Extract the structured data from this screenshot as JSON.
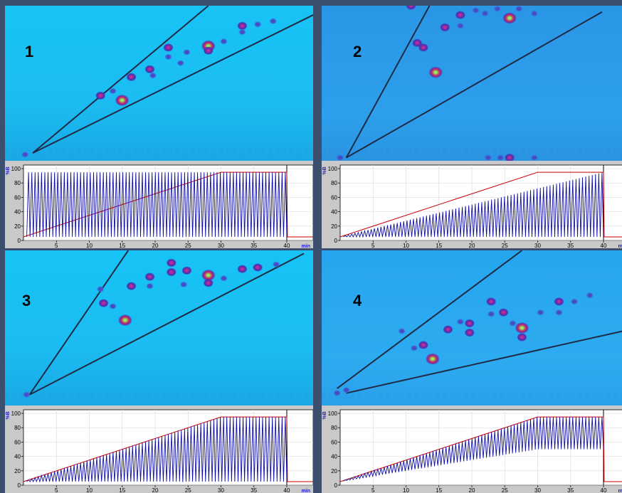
{
  "panels": [
    {
      "label": "1"
    },
    {
      "label": "2"
    },
    {
      "label": "3"
    },
    {
      "label": "4"
    }
  ],
  "chart_data": [
    {
      "type": "line",
      "panel": "1",
      "y_unit": "%B",
      "x_unit": "min",
      "xlim": [
        0,
        44
      ],
      "ylim": [
        0,
        105
      ],
      "x_ticks": [
        5,
        10,
        15,
        20,
        25,
        30,
        35,
        40
      ],
      "y_ticks": [
        0,
        20,
        40,
        60,
        80,
        100
      ],
      "series": [
        {
          "color": "#cc0000",
          "values": [
            [
              0,
              5
            ],
            [
              30,
              95
            ],
            [
              40,
              95
            ],
            [
              40.1,
              5
            ],
            [
              44,
              5
            ]
          ]
        },
        {
          "color": "#1010a0",
          "pattern": "sawtooth",
          "cycles": 80,
          "x_range": [
            0.5,
            40
          ],
          "lower": [
            [
              0,
              5
            ],
            [
              40,
              5
            ]
          ],
          "upper": [
            [
              0,
              95
            ],
            [
              40,
              95
            ]
          ]
        }
      ]
    },
    {
      "type": "line",
      "panel": "2",
      "y_unit": "%B",
      "x_unit": "min",
      "xlim": [
        0,
        44
      ],
      "ylim": [
        0,
        105
      ],
      "x_ticks": [
        5,
        10,
        15,
        20,
        25,
        30,
        35,
        40
      ],
      "y_ticks": [
        0,
        20,
        40,
        60,
        80,
        100
      ],
      "series": [
        {
          "color": "#cc0000",
          "values": [
            [
              0,
              5
            ],
            [
              30,
              95
            ],
            [
              40,
              95
            ],
            [
              40.1,
              5
            ],
            [
              44,
              5
            ]
          ]
        },
        {
          "color": "#1010a0",
          "pattern": "sawtooth",
          "cycles": 80,
          "x_range": [
            0.5,
            40
          ],
          "lower": [
            [
              0,
              5
            ],
            [
              40,
              5
            ]
          ],
          "upper": [
            [
              0,
              5
            ],
            [
              40,
              95
            ]
          ]
        }
      ]
    },
    {
      "type": "line",
      "panel": "3",
      "y_unit": "%B",
      "x_unit": "min",
      "xlim": [
        0,
        44
      ],
      "ylim": [
        0,
        105
      ],
      "x_ticks": [
        5,
        10,
        15,
        20,
        25,
        30,
        35,
        40
      ],
      "y_ticks": [
        0,
        20,
        40,
        60,
        80,
        100
      ],
      "series": [
        {
          "color": "#cc0000",
          "values": [
            [
              0,
              5
            ],
            [
              30,
              95
            ],
            [
              40,
              95
            ],
            [
              40.1,
              5
            ],
            [
              44,
              5
            ]
          ]
        },
        {
          "color": "#1010a0",
          "pattern": "sawtooth",
          "cycles": 80,
          "x_range": [
            0.5,
            40
          ],
          "lower": [
            [
              0,
              5
            ],
            [
              40,
              5
            ]
          ],
          "upper": [
            [
              0,
              5
            ],
            [
              30,
              95
            ],
            [
              40,
              95
            ]
          ]
        }
      ]
    },
    {
      "type": "line",
      "panel": "4",
      "y_unit": "%B",
      "x_unit": "min",
      "xlim": [
        0,
        44
      ],
      "ylim": [
        0,
        105
      ],
      "x_ticks": [
        5,
        10,
        15,
        20,
        25,
        30,
        35,
        40
      ],
      "y_ticks": [
        0,
        20,
        40,
        60,
        80,
        100
      ],
      "series": [
        {
          "color": "#cc0000",
          "values": [
            [
              0,
              5
            ],
            [
              30,
              95
            ],
            [
              40,
              95
            ],
            [
              40.1,
              5
            ],
            [
              44,
              5
            ]
          ]
        },
        {
          "color": "#1010a0",
          "pattern": "sawtooth",
          "cycles": 80,
          "x_range": [
            0.5,
            40
          ],
          "lower": [
            [
              0,
              5
            ],
            [
              30,
              50
            ],
            [
              40,
              50
            ]
          ],
          "upper": [
            [
              0,
              5
            ],
            [
              30,
              95
            ],
            [
              40,
              95
            ]
          ]
        }
      ]
    }
  ],
  "contour_maps": [
    {
      "panel": "1",
      "style": "cyan",
      "lines": [
        [
          [
            0.09,
            0.95
          ],
          [
            0.66,
            0.0
          ]
        ],
        [
          [
            0.09,
            0.95
          ],
          [
            1.0,
            0.06
          ]
        ]
      ],
      "spots": [
        [
          0.065,
          0.96,
          0.4
        ],
        [
          0.31,
          0.58,
          0.5
        ],
        [
          0.35,
          0.55,
          0.4
        ],
        [
          0.38,
          0.61,
          1.0
        ],
        [
          0.41,
          0.46,
          0.5
        ],
        [
          0.47,
          0.41,
          0.5
        ],
        [
          0.48,
          0.45,
          0.4
        ],
        [
          0.53,
          0.27,
          0.5
        ],
        [
          0.53,
          0.33,
          0.4
        ],
        [
          0.57,
          0.37,
          0.4
        ],
        [
          0.59,
          0.3,
          0.4
        ],
        [
          0.66,
          0.26,
          0.9
        ],
        [
          0.66,
          0.29,
          0.5
        ],
        [
          0.71,
          0.23,
          0.4
        ],
        [
          0.77,
          0.13,
          0.5
        ],
        [
          0.77,
          0.17,
          0.4
        ],
        [
          0.82,
          0.12,
          0.3
        ],
        [
          0.87,
          0.1,
          0.3
        ]
      ]
    },
    {
      "panel": "2",
      "style": "blue",
      "lines": [
        [
          [
            0.08,
            0.98
          ],
          [
            0.35,
            0.0
          ]
        ],
        [
          [
            0.08,
            0.98
          ],
          [
            0.91,
            0.04
          ]
        ]
      ],
      "spots": [
        [
          0.06,
          0.98,
          0.4
        ],
        [
          0.29,
          0.0,
          0.5
        ],
        [
          0.31,
          0.24,
          0.5
        ],
        [
          0.33,
          0.27,
          0.5
        ],
        [
          0.37,
          0.43,
          0.9
        ],
        [
          0.4,
          0.14,
          0.5
        ],
        [
          0.45,
          0.06,
          0.5
        ],
        [
          0.45,
          0.13,
          0.4
        ],
        [
          0.5,
          0.03,
          0.4
        ],
        [
          0.53,
          0.05,
          0.3
        ],
        [
          0.57,
          0.02,
          0.4
        ],
        [
          0.61,
          0.08,
          0.9
        ],
        [
          0.64,
          0.02,
          0.4
        ],
        [
          0.69,
          0.05,
          0.4
        ],
        [
          0.54,
          0.98,
          0.3
        ],
        [
          0.58,
          0.98,
          0.3
        ],
        [
          0.61,
          0.98,
          0.6
        ],
        [
          0.69,
          0.98,
          0.3
        ]
      ]
    },
    {
      "panel": "3",
      "style": "cyan",
      "lines": [
        [
          [
            0.08,
            0.93
          ],
          [
            0.4,
            0.0
          ]
        ],
        [
          [
            0.08,
            0.93
          ],
          [
            0.97,
            0.02
          ]
        ]
      ],
      "spots": [
        [
          0.07,
          0.93,
          0.4
        ],
        [
          0.31,
          0.25,
          0.4
        ],
        [
          0.32,
          0.34,
          0.5
        ],
        [
          0.35,
          0.36,
          0.4
        ],
        [
          0.39,
          0.45,
          0.9
        ],
        [
          0.41,
          0.23,
          0.5
        ],
        [
          0.47,
          0.17,
          0.5
        ],
        [
          0.47,
          0.23,
          0.4
        ],
        [
          0.54,
          0.08,
          0.6
        ],
        [
          0.54,
          0.14,
          0.5
        ],
        [
          0.59,
          0.13,
          0.5
        ],
        [
          0.58,
          0.22,
          0.4
        ],
        [
          0.66,
          0.16,
          0.9
        ],
        [
          0.66,
          0.21,
          0.7
        ],
        [
          0.71,
          0.18,
          0.4
        ],
        [
          0.77,
          0.12,
          0.6
        ],
        [
          0.82,
          0.11,
          0.5
        ],
        [
          0.88,
          0.09,
          0.3
        ]
      ]
    },
    {
      "panel": "4",
      "style": "blue",
      "lines": [
        [
          [
            0.05,
            0.89
          ],
          [
            0.65,
            0.0
          ]
        ],
        [
          [
            0.08,
            0.92
          ],
          [
            1.0,
            0.51
          ]
        ]
      ],
      "spots": [
        [
          0.05,
          0.92,
          0.4
        ],
        [
          0.08,
          0.9,
          0.3
        ],
        [
          0.26,
          0.52,
          0.3
        ],
        [
          0.3,
          0.63,
          0.4
        ],
        [
          0.33,
          0.61,
          0.5
        ],
        [
          0.36,
          0.7,
          0.9
        ],
        [
          0.41,
          0.51,
          0.5
        ],
        [
          0.45,
          0.46,
          0.3
        ],
        [
          0.48,
          0.47,
          0.5
        ],
        [
          0.48,
          0.53,
          0.5
        ],
        [
          0.55,
          0.33,
          0.5
        ],
        [
          0.55,
          0.41,
          0.4
        ],
        [
          0.59,
          0.4,
          0.5
        ],
        [
          0.62,
          0.47,
          0.4
        ],
        [
          0.65,
          0.5,
          0.9
        ],
        [
          0.65,
          0.56,
          0.5
        ],
        [
          0.71,
          0.4,
          0.4
        ],
        [
          0.77,
          0.33,
          0.6
        ],
        [
          0.77,
          0.4,
          0.4
        ],
        [
          0.82,
          0.33,
          0.4
        ],
        [
          0.87,
          0.29,
          0.3
        ]
      ]
    }
  ]
}
